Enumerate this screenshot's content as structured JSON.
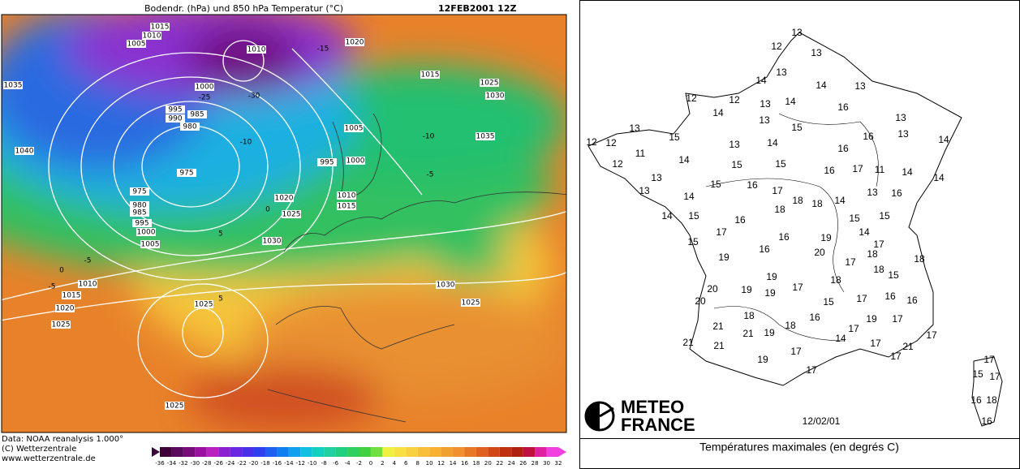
{
  "left_map": {
    "title": "Bodendr. (hPa) und 850 hPa Temperatur (°C)",
    "date": "12FEB2001 12Z",
    "isobar_labels": [
      1015,
      1010,
      1005,
      1010,
      1020,
      1035,
      1000,
      995,
      990,
      985,
      980,
      1015,
      1025,
      1030,
      1005,
      1035,
      1040,
      975,
      995,
      1000,
      975,
      980,
      985,
      995,
      1000,
      1005,
      1020,
      1025,
      1010,
      1015,
      1030,
      1010,
      1015,
      1020,
      1025,
      1025,
      1030,
      1025,
      1025
    ],
    "temperature_labels": [
      -30,
      -25,
      -15,
      -10,
      -10,
      -5,
      0,
      5,
      -5,
      0,
      -5,
      5
    ],
    "colorbar_ticks": [
      -36,
      -34,
      -32,
      -30,
      -28,
      -26,
      -24,
      -22,
      -20,
      -18,
      -16,
      -14,
      -12,
      -10,
      -8,
      -6,
      -4,
      -2,
      0,
      2,
      4,
      6,
      8,
      10,
      12,
      14,
      16,
      18,
      20,
      22,
      24,
      26,
      28,
      30,
      32
    ],
    "footer": [
      "Data: NOAA reanalysis 1.000°",
      "(C) Wetterzentrale",
      "www.wetterzentrale.de"
    ]
  },
  "right_map": {
    "logo": [
      "METEO",
      "FRANCE"
    ],
    "date": "12/02/01",
    "caption": "Températures maximales (en degrés C)",
    "temperatures": [
      13,
      12,
      13,
      13,
      14,
      14,
      13,
      12,
      12,
      13,
      14,
      16,
      14,
      13,
      15,
      13,
      13,
      15,
      13,
      14,
      12,
      12,
      11,
      13,
      14,
      16,
      16,
      14,
      15,
      15,
      16,
      17,
      11,
      12,
      14,
      14,
      13,
      13,
      15,
      16,
      17,
      18,
      18,
      14,
      13,
      16,
      14,
      18,
      14,
      15,
      16,
      15,
      15,
      17,
      16,
      19,
      14,
      17,
      15,
      19,
      16,
      20,
      18,
      17,
      18,
      19,
      18,
      15,
      18,
      20,
      19,
      19,
      17,
      17,
      16,
      16,
      20,
      15,
      18,
      16,
      18,
      19,
      17,
      21,
      19,
      21,
      17,
      14,
      17,
      21,
      21,
      17,
      21,
      17,
      19,
      17,
      17,
      17,
      15,
      17,
      16,
      18,
      16
    ]
  }
}
